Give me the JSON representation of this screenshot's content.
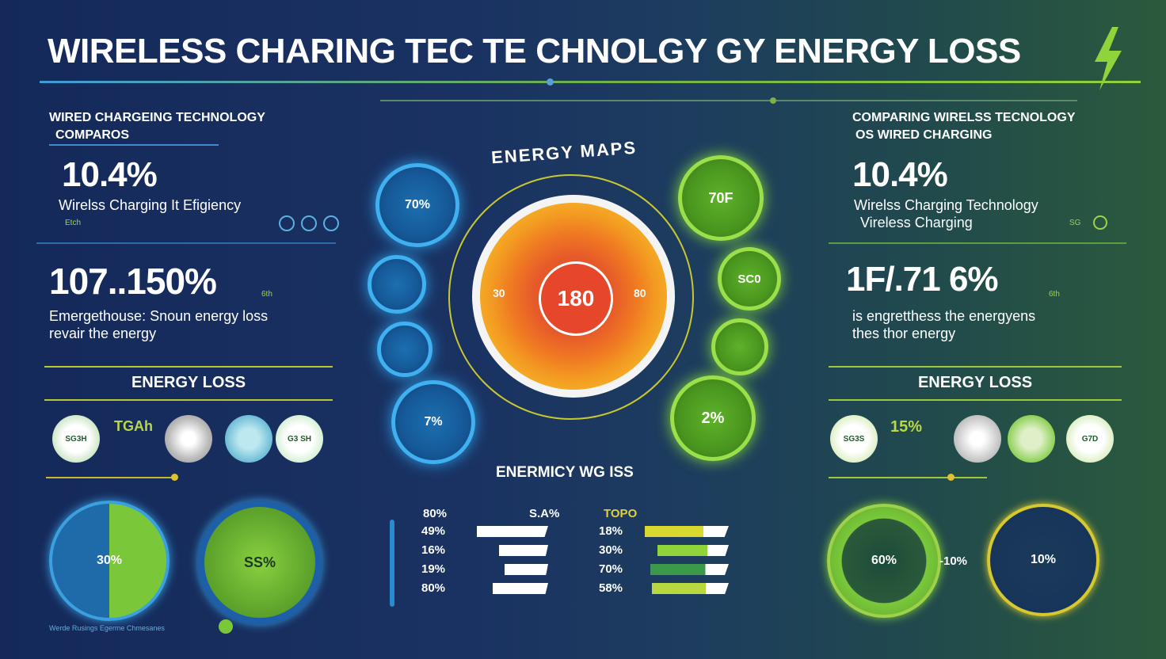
{
  "title": "WIRELESS CHARING TEC TE CHNOLGY GY ENERGY LOSS",
  "colors": {
    "accent_green": "#8fd43a",
    "accent_blue": "#3fb0f0",
    "bg": "#1a3262"
  },
  "left": {
    "heading_line1": "WIRED CHARGEING TECHNOLOGY",
    "heading_line2": "COMPAROS",
    "stat1_value": "10.4%",
    "stat1_label": "Wirelss Charging It Efigiency",
    "stat1_tiny": "Etch",
    "stat2_value": "107..150%",
    "stat2_tiny": "6th",
    "stat2_line1": "Emergethouse: Snoun energy loss",
    "stat2_line2": "revair the energy",
    "loss_heading": "ENERGY LOSS",
    "badge1": "SG3H",
    "badge_text": "TGAh",
    "badge4": "G3 SH",
    "donut1": "30%",
    "donut2": "SS%",
    "footer": "Werde Rusings Egerme Chmesanes"
  },
  "right": {
    "heading_line1": "COMPARING WIRELSS TECNOLOGY",
    "heading_line2": "OS WIRED CHARGING",
    "stat1_value": "10.4%",
    "stat1_line1": "Wirelss Charging Technology",
    "stat1_line2": "Vireless Charging",
    "stat1_tiny": "SG",
    "stat2_value": "1F/.71 6%",
    "stat2_tiny": "6th",
    "stat2_line1": "is engretthess the energyens",
    "stat2_line2": "thes thor energy",
    "loss_heading": "ENERGY LOSS",
    "badge1": "SG3S",
    "badge_text": "15%",
    "badge4": "G7D",
    "donut1": "60%",
    "donut_mid": "-10%",
    "donut2": "10%"
  },
  "center": {
    "map_title": "ENERGY MAPS",
    "core_value": "180",
    "left_label": "30",
    "right_label": "80",
    "bubbles_left": [
      "70%",
      "",
      "",
      "7%"
    ],
    "bubbles_right": [
      "70F",
      "SC0",
      "",
      "2%"
    ],
    "subtitle": "ENERMICY WG ISS",
    "left_chart": {
      "header_left": "80%",
      "header_right": "S.A%",
      "rows": [
        {
          "label": "49%",
          "value": 0.9
        },
        {
          "label": "16%",
          "value": 0.62
        },
        {
          "label": "19%",
          "value": 0.55
        },
        {
          "label": "80%",
          "value": 0.7
        }
      ]
    },
    "right_chart": {
      "header_left": "TOPO",
      "rows": [
        {
          "label": "18%",
          "value": 0.96
        },
        {
          "label": "30%",
          "value": 0.82
        },
        {
          "label": "70%",
          "value": 0.9
        },
        {
          "label": "58%",
          "value": 0.88
        }
      ]
    }
  }
}
